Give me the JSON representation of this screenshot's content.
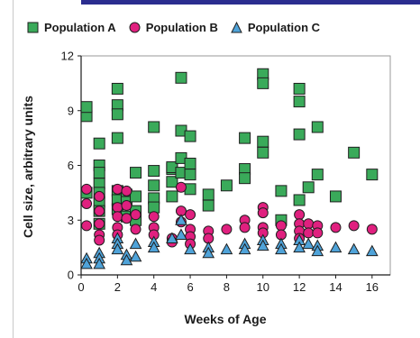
{
  "chart_data": {
    "type": "scatter",
    "title": "",
    "xlabel": "Weeks of Age",
    "ylabel": "Cell size, arbitrary units",
    "xlim": [
      0,
      17
    ],
    "ylim": [
      0,
      12
    ],
    "xticks": [
      0,
      2,
      4,
      6,
      8,
      10,
      12,
      14,
      16
    ],
    "yticks": [
      0,
      3,
      6,
      9,
      12
    ],
    "grid": false,
    "legend_position": "top",
    "series": [
      {
        "name": "Population A",
        "marker": "square",
        "color": "#3aaa5a",
        "points": [
          [
            0.3,
            8.7
          ],
          [
            0.3,
            9.2
          ],
          [
            0.3,
            4.5
          ],
          [
            1,
            7.2
          ],
          [
            1,
            6.0
          ],
          [
            1,
            5.6
          ],
          [
            1,
            5.0
          ],
          [
            1,
            4.5
          ],
          [
            1,
            4.0
          ],
          [
            1,
            3.5
          ],
          [
            1,
            2.8
          ],
          [
            2,
            10.2
          ],
          [
            2,
            9.3
          ],
          [
            2,
            8.8
          ],
          [
            2,
            7.5
          ],
          [
            2,
            4.6
          ],
          [
            2,
            4.1
          ],
          [
            2,
            3.6
          ],
          [
            2.5,
            4.4
          ],
          [
            2.5,
            4.0
          ],
          [
            2.5,
            3.2
          ],
          [
            3,
            5.6
          ],
          [
            3,
            4.3
          ],
          [
            3,
            3.5
          ],
          [
            3,
            3.0
          ],
          [
            4,
            8.1
          ],
          [
            4,
            5.7
          ],
          [
            4,
            4.9
          ],
          [
            4,
            4.2
          ],
          [
            4,
            3.7
          ],
          [
            5,
            5.8
          ],
          [
            5,
            5.9
          ],
          [
            5,
            5.1
          ],
          [
            5,
            4.3
          ],
          [
            5.5,
            10.8
          ],
          [
            5.5,
            7.9
          ],
          [
            5.5,
            6.4
          ],
          [
            5.5,
            5.6
          ],
          [
            6,
            7.6
          ],
          [
            6,
            6.1
          ],
          [
            6,
            5.5
          ],
          [
            6,
            4.7
          ],
          [
            7,
            4.4
          ],
          [
            7,
            3.8
          ],
          [
            8,
            4.9
          ],
          [
            9,
            7.5
          ],
          [
            9,
            5.8
          ],
          [
            9,
            5.3
          ],
          [
            10,
            11.0
          ],
          [
            10,
            10.5
          ],
          [
            10,
            7.3
          ],
          [
            10,
            6.7
          ],
          [
            11,
            4.6
          ],
          [
            11,
            3.0
          ],
          [
            12,
            10.2
          ],
          [
            12,
            9.5
          ],
          [
            12,
            7.7
          ],
          [
            12,
            4.1
          ],
          [
            12.5,
            4.8
          ],
          [
            13,
            8.1
          ],
          [
            13,
            5.5
          ],
          [
            14,
            4.3
          ],
          [
            15,
            6.7
          ],
          [
            16,
            5.5
          ]
        ]
      },
      {
        "name": "Population B",
        "marker": "circle",
        "color": "#e0207f",
        "points": [
          [
            0.3,
            4.7
          ],
          [
            0.3,
            3.9
          ],
          [
            0.3,
            2.7
          ],
          [
            1,
            4.3
          ],
          [
            1,
            3.5
          ],
          [
            1,
            2.8
          ],
          [
            1,
            2.2
          ],
          [
            1,
            1.9
          ],
          [
            2,
            4.7
          ],
          [
            2,
            3.7
          ],
          [
            2,
            3.2
          ],
          [
            2,
            2.6
          ],
          [
            2,
            2.2
          ],
          [
            2.5,
            4.6
          ],
          [
            2.5,
            3.8
          ],
          [
            2.5,
            3.1
          ],
          [
            3,
            3.3
          ],
          [
            3,
            2.5
          ],
          [
            4,
            3.2
          ],
          [
            4,
            2.6
          ],
          [
            4,
            2.2
          ],
          [
            5,
            2.0
          ],
          [
            5,
            1.8
          ],
          [
            5.5,
            4.8
          ],
          [
            5.5,
            3.5
          ],
          [
            5.5,
            2.9
          ],
          [
            6,
            3.3
          ],
          [
            6,
            2.5
          ],
          [
            6,
            2.1
          ],
          [
            6,
            1.7
          ],
          [
            7,
            2.4
          ],
          [
            7,
            2.0
          ],
          [
            8,
            2.5
          ],
          [
            9,
            3.0
          ],
          [
            9,
            2.6
          ],
          [
            10,
            3.7
          ],
          [
            10,
            3.4
          ],
          [
            10,
            2.6
          ],
          [
            10,
            2.3
          ],
          [
            11,
            2.7
          ],
          [
            11,
            2.2
          ],
          [
            12,
            3.3
          ],
          [
            12,
            2.8
          ],
          [
            12,
            2.4
          ],
          [
            12,
            2.0
          ],
          [
            12.5,
            2.8
          ],
          [
            12.5,
            2.3
          ],
          [
            13,
            2.7
          ],
          [
            13,
            2.3
          ],
          [
            14,
            2.6
          ],
          [
            15,
            2.7
          ],
          [
            16,
            2.5
          ]
        ]
      },
      {
        "name": "Population C",
        "marker": "triangle",
        "color": "#4fa3d9",
        "points": [
          [
            0.3,
            0.9
          ],
          [
            0.3,
            0.6
          ],
          [
            1,
            1.2
          ],
          [
            1,
            0.9
          ],
          [
            1,
            0.6
          ],
          [
            2,
            2.0
          ],
          [
            2,
            1.7
          ],
          [
            2,
            1.4
          ],
          [
            2.5,
            1.1
          ],
          [
            2.5,
            0.8
          ],
          [
            3,
            1.7
          ],
          [
            3,
            1.0
          ],
          [
            4,
            1.8
          ],
          [
            4,
            1.5
          ],
          [
            5,
            2.0
          ],
          [
            5.5,
            3.0
          ],
          [
            5.5,
            2.2
          ],
          [
            6,
            1.4
          ],
          [
            7,
            1.5
          ],
          [
            7,
            1.2
          ],
          [
            8,
            1.4
          ],
          [
            9,
            1.7
          ],
          [
            9,
            1.4
          ],
          [
            10,
            1.9
          ],
          [
            10,
            1.6
          ],
          [
            11,
            1.7
          ],
          [
            11,
            1.4
          ],
          [
            12,
            1.9
          ],
          [
            12,
            1.5
          ],
          [
            12.5,
            1.7
          ],
          [
            13,
            1.6
          ],
          [
            13,
            1.3
          ],
          [
            14,
            1.5
          ],
          [
            15,
            1.4
          ],
          [
            16,
            1.3
          ]
        ]
      }
    ]
  }
}
